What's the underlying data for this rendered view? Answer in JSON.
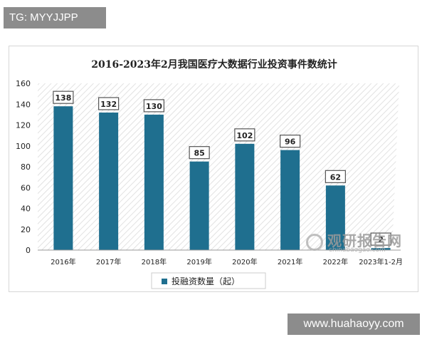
{
  "badge_top": "TG: MYYJJPP",
  "badge_bottom": "www.huahaoyy.com",
  "watermark": {
    "cn": "观研报告网",
    "en": "chinabaogao.com"
  },
  "colors": {
    "bar": "#1f6f8f",
    "axis": "#333333",
    "label_border": "#555555"
  },
  "chart_data": {
    "type": "bar",
    "title": "2016-2023年2月我国医疗大数据行业投资事件数统计",
    "xlabel": "",
    "ylabel": "",
    "ylim": [
      0,
      160
    ],
    "yticks": [
      0,
      20,
      40,
      60,
      80,
      100,
      120,
      140,
      160
    ],
    "grid": false,
    "legend_position": "bottom",
    "categories": [
      "2016年",
      "2017年",
      "2018年",
      "2019年",
      "2020年",
      "2021年",
      "2022年",
      "2023年1-2月"
    ],
    "series": [
      {
        "name": "投融资数量（起）",
        "values": [
          138,
          132,
          130,
          85,
          102,
          96,
          62,
          2
        ]
      }
    ]
  }
}
